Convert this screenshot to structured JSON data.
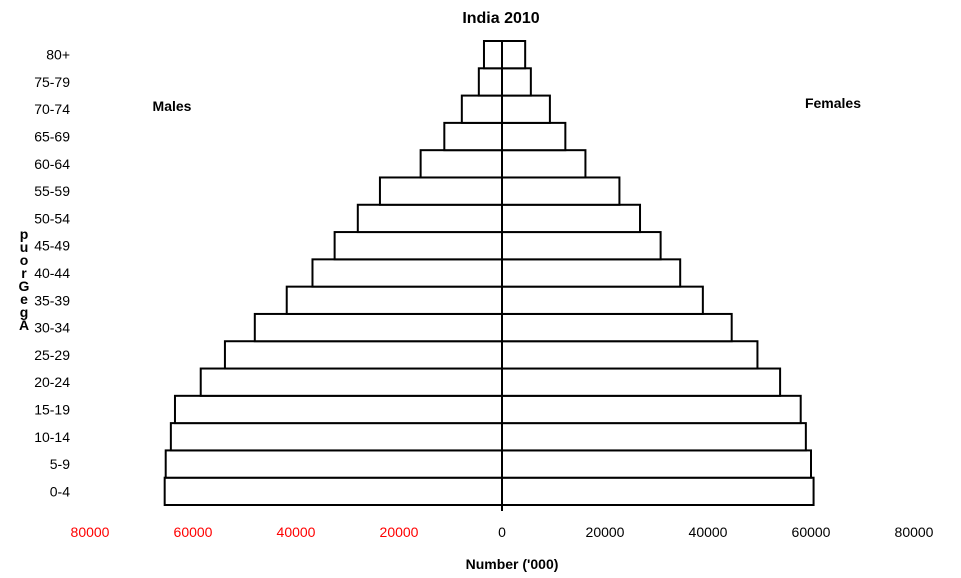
{
  "chart_data": {
    "type": "bar",
    "title": "India 2010",
    "xlabel": "Number ('000)",
    "ylabel": "Age Group",
    "left_label": "Males",
    "right_label": "Females",
    "categories": [
      "0-4",
      "5-9",
      "10-14",
      "15-19",
      "20-24",
      "25-29",
      "30-34",
      "35-39",
      "40-44",
      "45-49",
      "50-54",
      "55-59",
      "60-64",
      "65-69",
      "70-74",
      "75-79",
      "80+"
    ],
    "series": [
      {
        "name": "Males",
        "values": [
          65500,
          65300,
          64300,
          63500,
          58500,
          53800,
          48000,
          41800,
          36800,
          32500,
          28000,
          23700,
          15800,
          11200,
          7800,
          4500,
          3500
        ]
      },
      {
        "name": "Females",
        "values": [
          60500,
          60000,
          59000,
          58000,
          54000,
          49600,
          44600,
          39000,
          34600,
          30800,
          26800,
          22800,
          16200,
          12300,
          9300,
          5600,
          4500
        ]
      }
    ],
    "xlim": [
      -80000,
      80000
    ],
    "x_ticks": [
      -80000,
      -60000,
      -40000,
      -20000,
      0,
      20000,
      40000,
      60000,
      80000
    ],
    "x_tick_labels": [
      "80000",
      "60000",
      "40000",
      "20000",
      "0",
      "20000",
      "40000",
      "60000",
      "80000"
    ],
    "negative_tick_color": "#ff0000",
    "positive_tick_color": "#000000",
    "grid": false
  }
}
